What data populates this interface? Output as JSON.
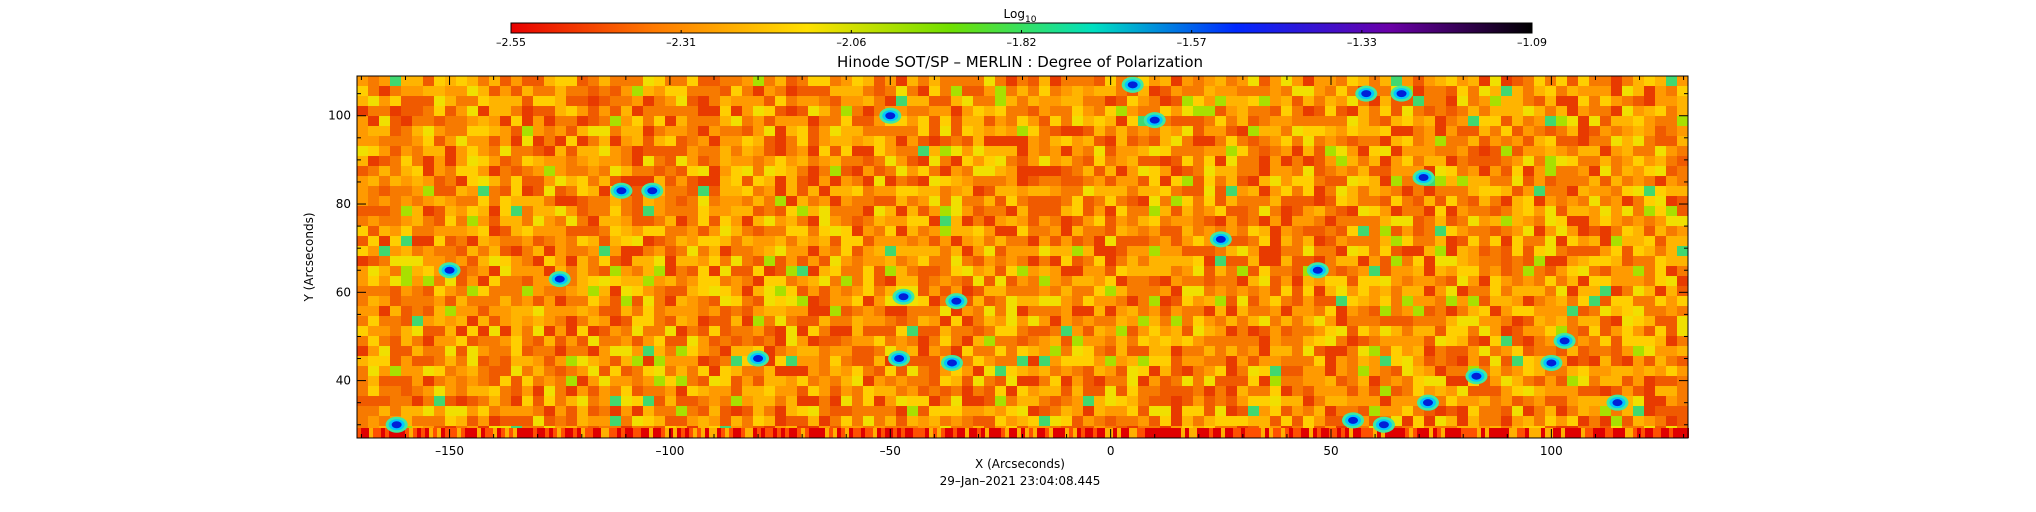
{
  "chart_data": {
    "type": "heatmap",
    "title": "Hinode SOT/SP – MERLIN : Degree of Polarization",
    "xlabel": "X (Arcseconds)",
    "ylabel": "Y (Arcseconds)",
    "timestamp": "29–Jan–2021 23:04:08.445",
    "colorbar": {
      "label_main": "Log",
      "label_sub": "10",
      "range": [
        -2.55,
        -1.09
      ],
      "tick_labels": [
        "–2.55",
        "–2.31",
        "–2.06",
        "–1.82",
        "–1.57",
        "–1.33",
        "–1.09"
      ],
      "colors": [
        "#e80000",
        "#ff7a00",
        "#ffe000",
        "#70e000",
        "#00e0c0",
        "#0028ff",
        "#6a00a8",
        "#000000"
      ]
    },
    "xlim": [
      -171,
      131
    ],
    "ylim": [
      27,
      109
    ],
    "x_ticks": [
      {
        "value": -150,
        "label": "–150"
      },
      {
        "value": -100,
        "label": "–100"
      },
      {
        "value": -50,
        "label": "–50"
      },
      {
        "value": 0,
        "label": "0"
      },
      {
        "value": 50,
        "label": "50"
      },
      {
        "value": 100,
        "label": "100"
      }
    ],
    "y_ticks": [
      {
        "value": 40,
        "label": "40"
      },
      {
        "value": 60,
        "label": "60"
      },
      {
        "value": 80,
        "label": "80"
      },
      {
        "value": 100,
        "label": "100"
      }
    ],
    "strong_features": [
      {
        "x": 5,
        "y": 107
      },
      {
        "x": 58,
        "y": 105
      },
      {
        "x": 66,
        "y": 105
      },
      {
        "x": -50,
        "y": 100
      },
      {
        "x": 10,
        "y": 99
      },
      {
        "x": -111,
        "y": 83
      },
      {
        "x": -104,
        "y": 83
      },
      {
        "x": 71,
        "y": 86
      },
      {
        "x": -150,
        "y": 65
      },
      {
        "x": -125,
        "y": 63
      },
      {
        "x": -47,
        "y": 59
      },
      {
        "x": -35,
        "y": 58
      },
      {
        "x": 25,
        "y": 72
      },
      {
        "x": 47,
        "y": 65
      },
      {
        "x": -80,
        "y": 45
      },
      {
        "x": -48,
        "y": 45
      },
      {
        "x": -36,
        "y": 44
      },
      {
        "x": 103,
        "y": 49
      },
      {
        "x": 100,
        "y": 44
      },
      {
        "x": 115,
        "y": 35
      },
      {
        "x": 72,
        "y": 35
      },
      {
        "x": 55,
        "y": 31
      },
      {
        "x": 62,
        "y": 30
      },
      {
        "x": -162,
        "y": 30
      },
      {
        "x": 83,
        "y": 41
      }
    ]
  }
}
